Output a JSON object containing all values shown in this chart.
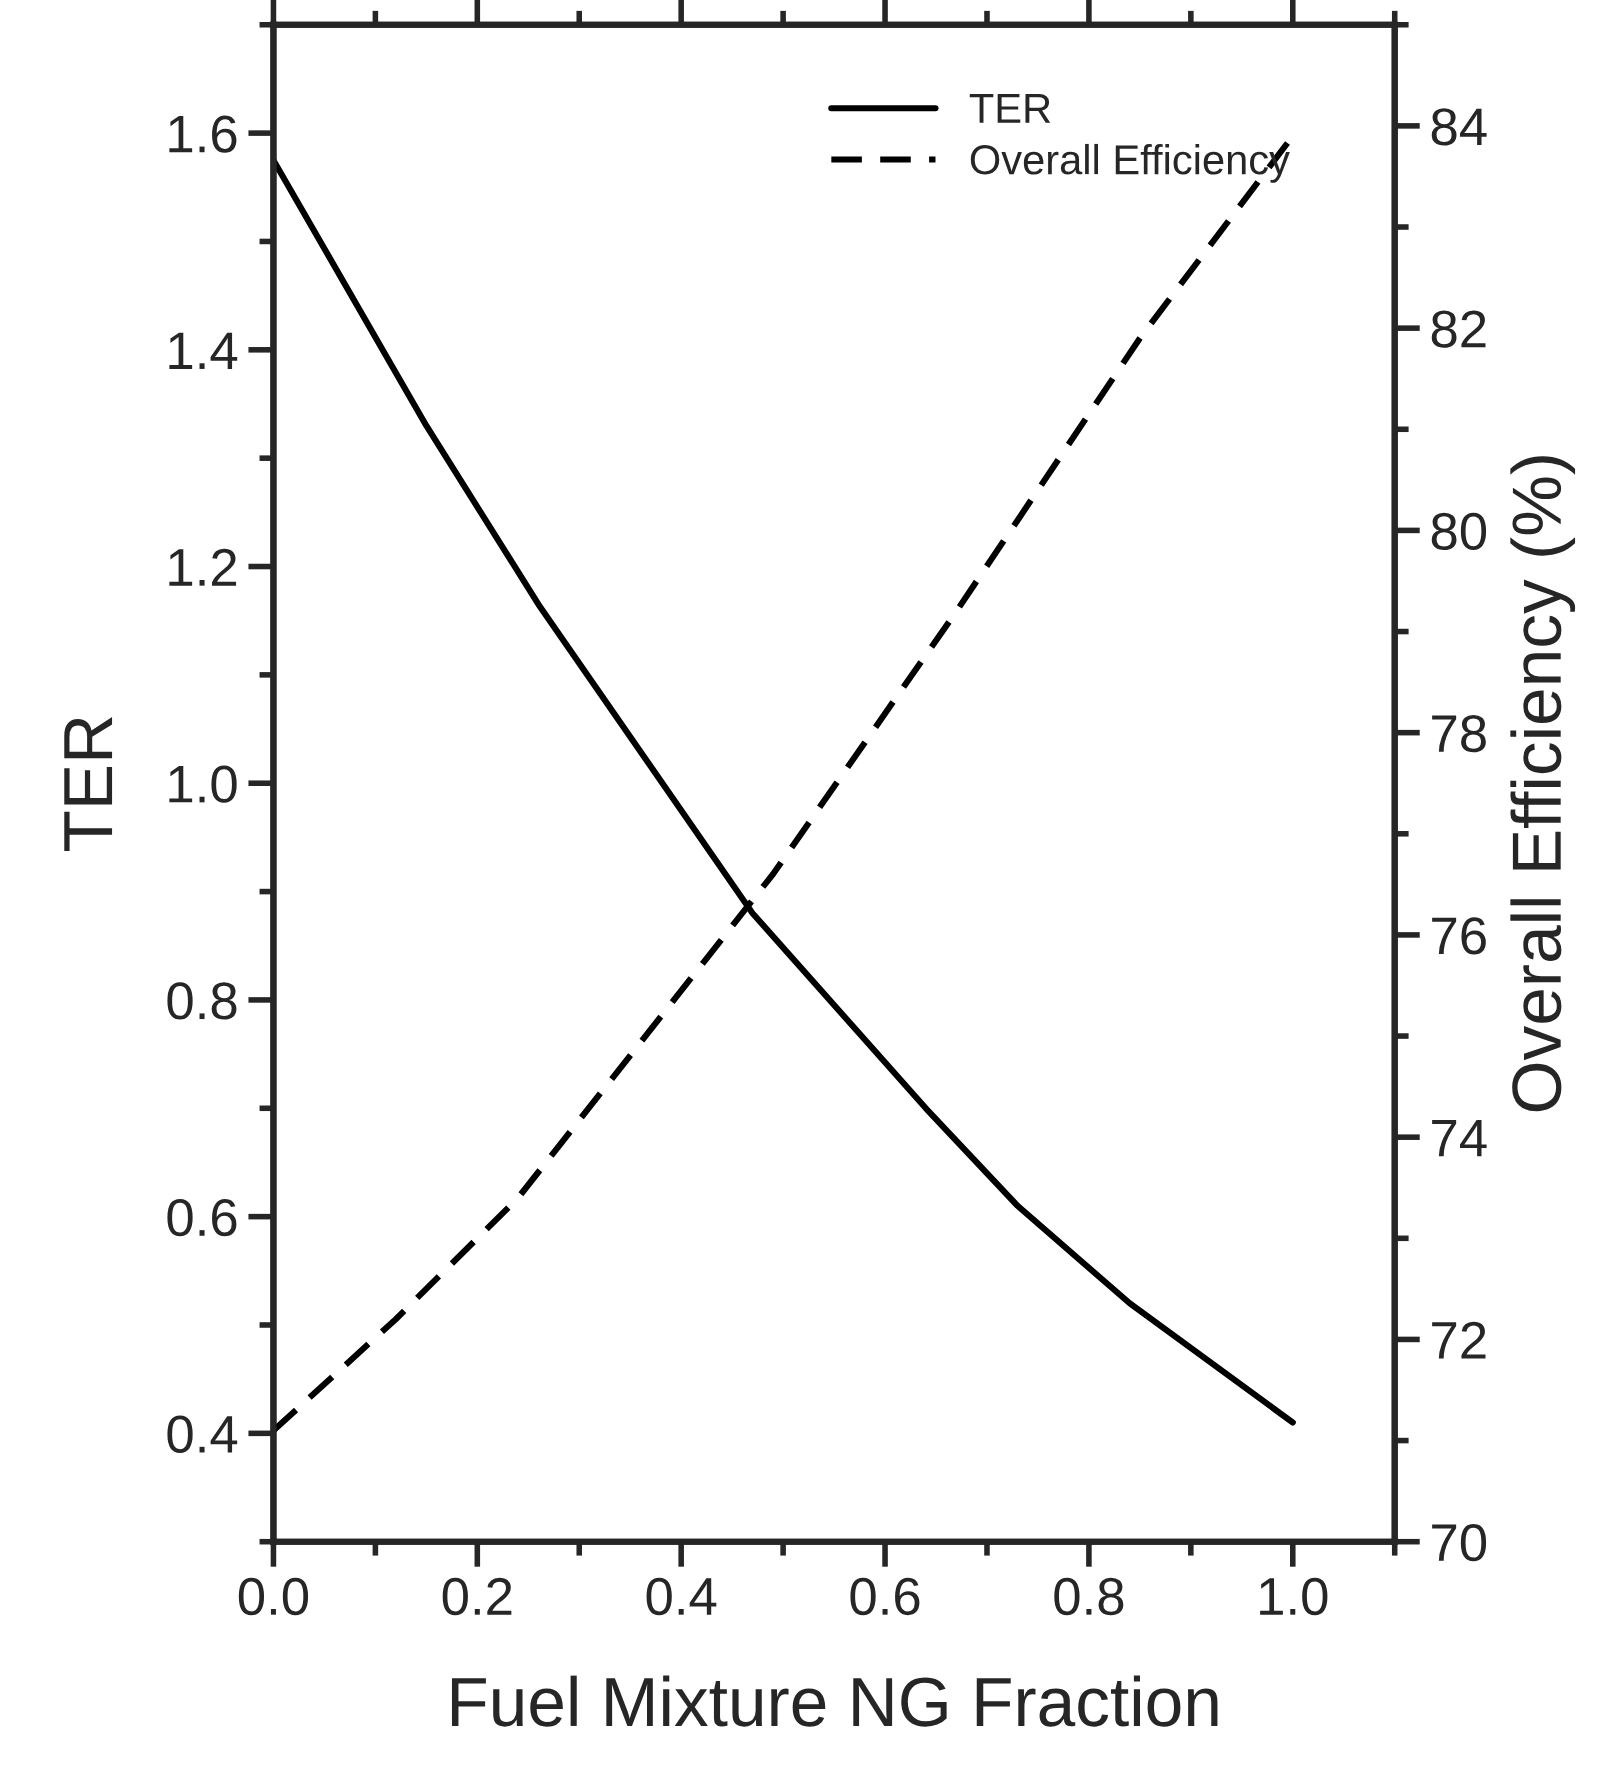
{
  "chart_data": {
    "type": "line",
    "xlabel": "Fuel Mixture NG Fraction",
    "ylabel": "TER",
    "y2label": "Overall Efficiency (%)",
    "xlim": [
      0,
      1.1
    ],
    "xticks": [
      {
        "value": 0,
        "label": "0.0"
      },
      0.2,
      0.4,
      0.6,
      0.8,
      {
        "value": 1,
        "label": "1.0"
      }
    ],
    "ylim": [
      0.3,
      1.7
    ],
    "yticks": [
      0.4,
      0.6,
      0.8,
      {
        "value": 1,
        "label": "1.0"
      },
      1.2,
      1.4,
      1.6
    ],
    "y2lim": [
      70,
      85
    ],
    "y2ticks": [
      70,
      72,
      74,
      76,
      78,
      80,
      82,
      84
    ],
    "legend": "top right",
    "grid": false,
    "marker": "none",
    "series": [
      {
        "name": "TER",
        "color": "#000000",
        "line_style": "solid",
        "x": [
          0,
          0.15,
          0.26,
          0.47,
          0.64,
          0.73,
          0.84,
          1.0
        ],
        "values": [
          1.575,
          1.33,
          1.165,
          0.88,
          0.7,
          0.61,
          0.52,
          0.41
        ]
      },
      {
        "name": "Overall Efficiency",
        "color": "#000000",
        "line_style": "dashed",
        "axis": "y2",
        "x": [
          0,
          0.12,
          0.24,
          0.49,
          0.67,
          0.77,
          0.85,
          1.0
        ],
        "values": [
          71.1,
          72.2,
          73.4,
          76.6,
          79.2,
          80.7,
          81.9,
          83.9
        ]
      }
    ]
  }
}
